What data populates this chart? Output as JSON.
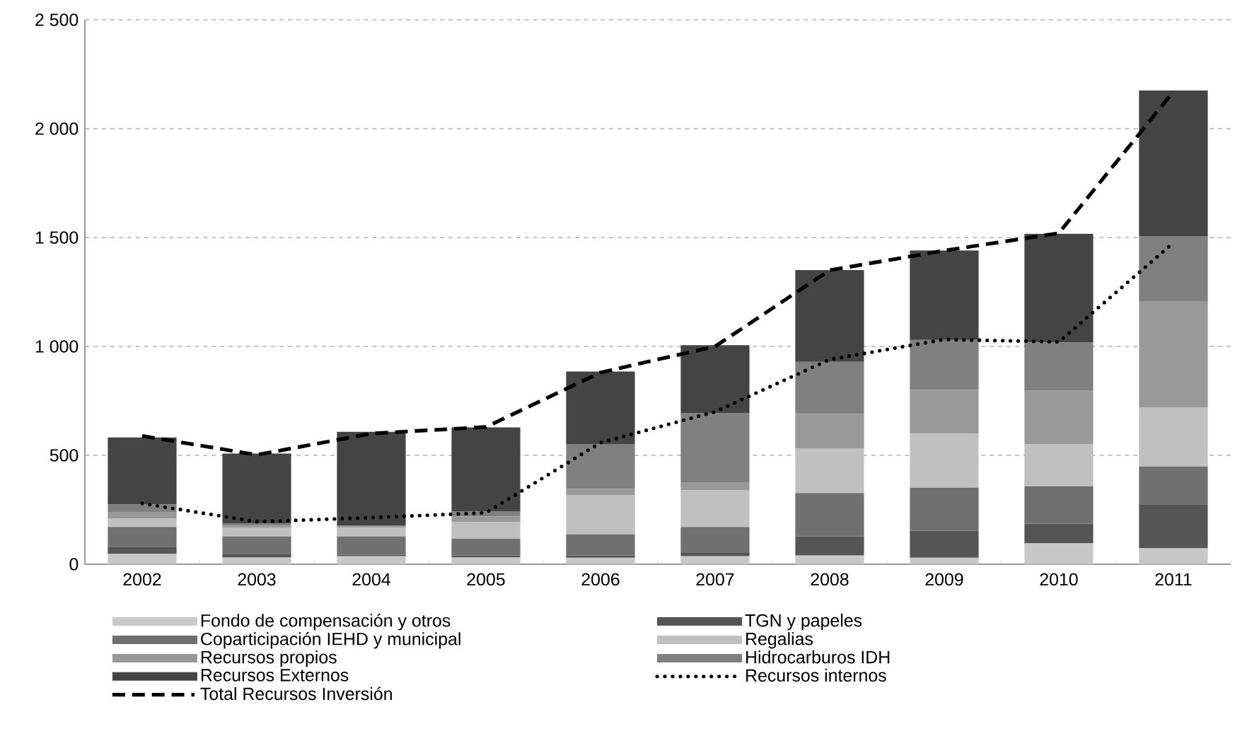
{
  "chart_data": {
    "type": "bar",
    "stacked": true,
    "grid": "y",
    "legend": "bottom",
    "categories": [
      "2002",
      "2003",
      "2004",
      "2005",
      "2006",
      "2007",
      "2008",
      "2009",
      "2010",
      "2011"
    ],
    "ylim": [
      0,
      2500
    ],
    "yticks": [
      0,
      500,
      {
        "value": 1000,
        "label": "1 000"
      },
      {
        "value": 1500,
        "label": "1 500"
      },
      {
        "value": 2000,
        "label": "2 000"
      },
      {
        "value": 2500,
        "label": "2 500"
      }
    ],
    "series": [
      {
        "name": "Fondo de compensación y otros",
        "color": "#c8c8c8",
        "values": [
          48,
          32,
          37,
          32,
          30,
          37,
          41,
          30,
          97,
          74
        ]
      },
      {
        "name": "TGN y papeles",
        "color": "#555555",
        "values": [
          32,
          16,
          6,
          9,
          11,
          15,
          87,
          124,
          89,
          201
        ]
      },
      {
        "name": "Coparticipación IEHD y municipal",
        "color": "#707070",
        "values": [
          91,
          80,
          85,
          76,
          97,
          119,
          199,
          197,
          173,
          175
        ]
      },
      {
        "name": "Regalias",
        "color": "#c0c0c0",
        "values": [
          39,
          39,
          40,
          78,
          180,
          169,
          204,
          249,
          193,
          271
        ]
      },
      {
        "name": "Recursos propios",
        "color": "#999999",
        "values": [
          30,
          11,
          5,
          25,
          28,
          37,
          159,
          201,
          247,
          487
        ]
      },
      {
        "name": "Hidrocarburos IDH",
        "color": "#808080",
        "values": [
          35,
          10,
          4,
          22,
          206,
          316,
          239,
          229,
          220,
          298
        ]
      },
      {
        "name": "Recursos Externos",
        "color": "#444444",
        "values": [
          307,
          320,
          431,
          386,
          333,
          313,
          422,
          411,
          498,
          669
        ]
      },
      {
        "name": "Recursos internos",
        "type": "line",
        "line_style": "dotted",
        "color": "#000000",
        "values": [
          279,
          195,
          214,
          236,
          558,
          700,
          940,
          1032,
          1021,
          1476
        ]
      },
      {
        "name": "Total Recursos Inversión",
        "type": "line",
        "line_style": "dashed",
        "color": "#000000",
        "values": [
          589,
          502,
          600,
          630,
          880,
          1000,
          1350,
          1440,
          1520,
          2170
        ]
      }
    ]
  }
}
